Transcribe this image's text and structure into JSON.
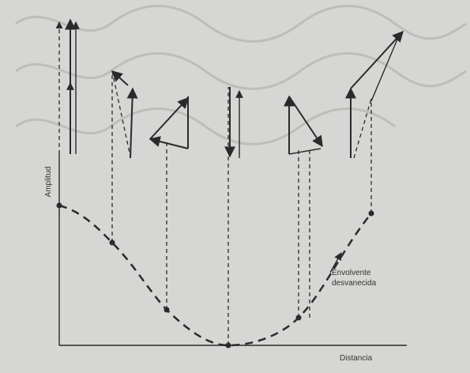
{
  "labels": {
    "y_axis": "Amplitud",
    "x_axis": "Distancia",
    "envelope": [
      "Envolvente",
      "desvanecida"
    ]
  }
}
